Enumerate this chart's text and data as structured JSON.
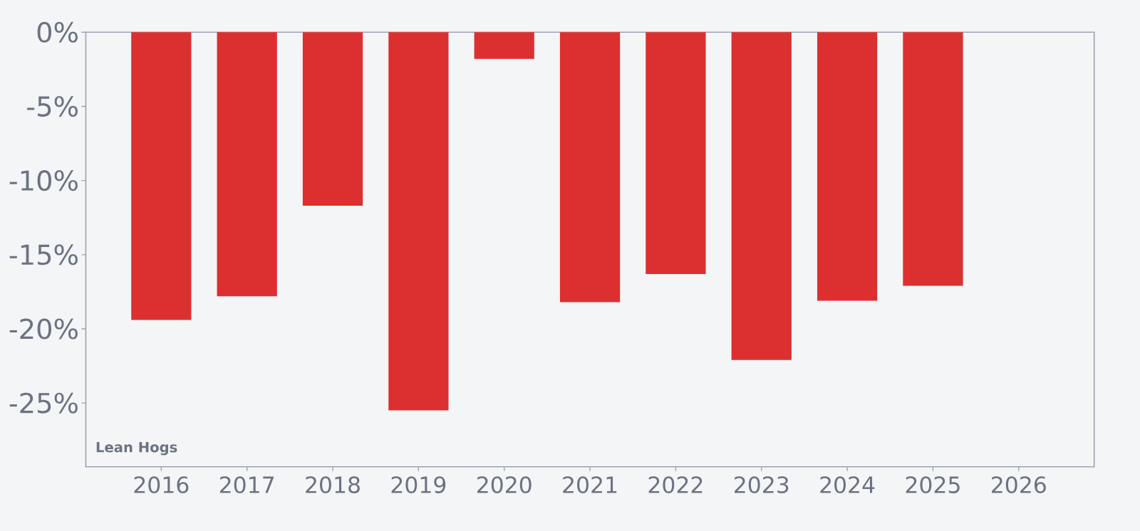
{
  "chart_data": {
    "type": "bar",
    "categories": [
      "2016",
      "2017",
      "2018",
      "2019",
      "2020",
      "2021",
      "2022",
      "2023",
      "2024",
      "2025",
      "2026"
    ],
    "values": [
      -19.4,
      -17.8,
      -11.7,
      -25.5,
      -1.8,
      -18.2,
      -16.3,
      -22.1,
      -18.1,
      -17.1,
      null
    ],
    "color": "#dc3030",
    "ylim": [
      -29.3,
      0
    ],
    "yticks": [
      {
        "value": 0,
        "label": "0%"
      },
      {
        "value": -5,
        "label": "-5%"
      },
      {
        "value": -10,
        "label": "-10%"
      },
      {
        "value": -15,
        "label": "-15%"
      },
      {
        "value": -20,
        "label": "-20%"
      },
      {
        "value": -25,
        "label": "-25%"
      }
    ],
    "annotations": [
      "Lean Hogs"
    ]
  }
}
